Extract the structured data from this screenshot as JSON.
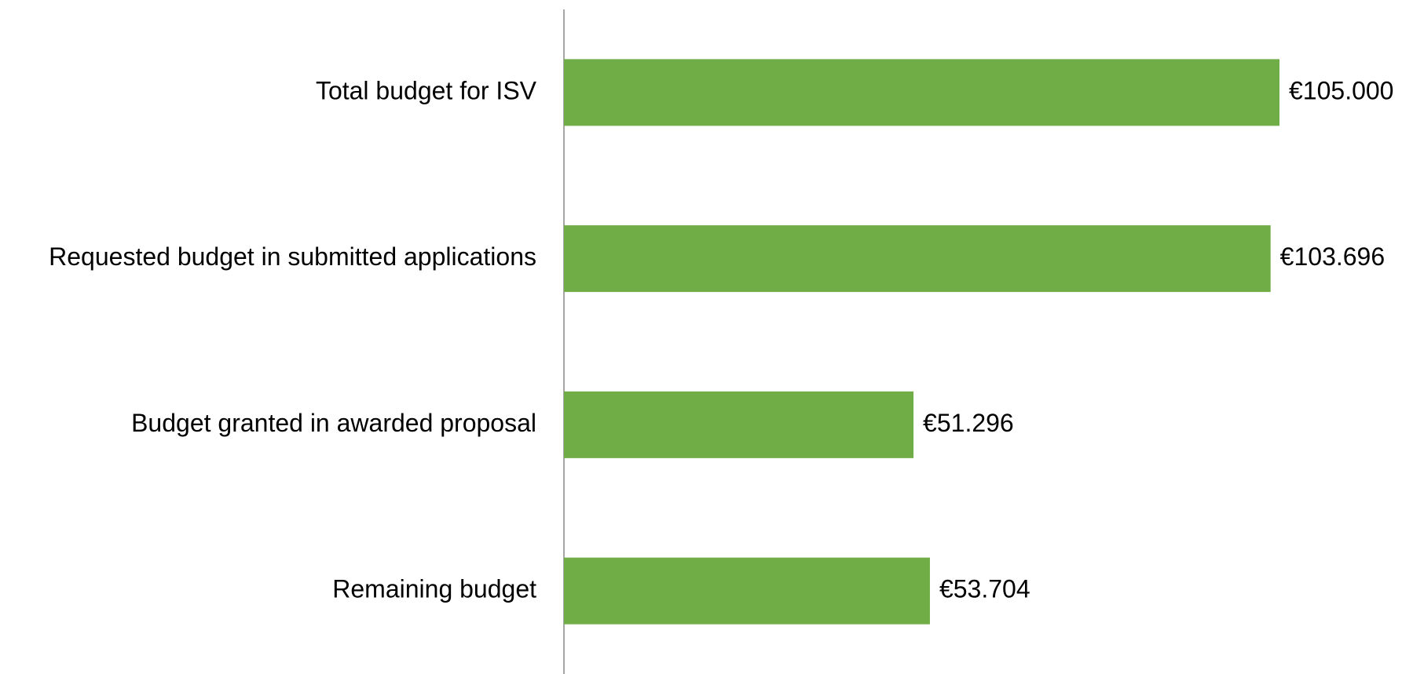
{
  "chart_data": {
    "type": "bar",
    "orientation": "horizontal",
    "categories": [
      "Total budget for ISV",
      "Requested budget in submitted applications",
      "Budget granted in awarded proposal",
      "Remaining budget"
    ],
    "values": [
      105000,
      103696,
      51296,
      53704
    ],
    "value_labels": [
      "€105.000",
      "€103.696",
      "€51.296",
      "€53.704"
    ],
    "color": "#70ad47"
  }
}
